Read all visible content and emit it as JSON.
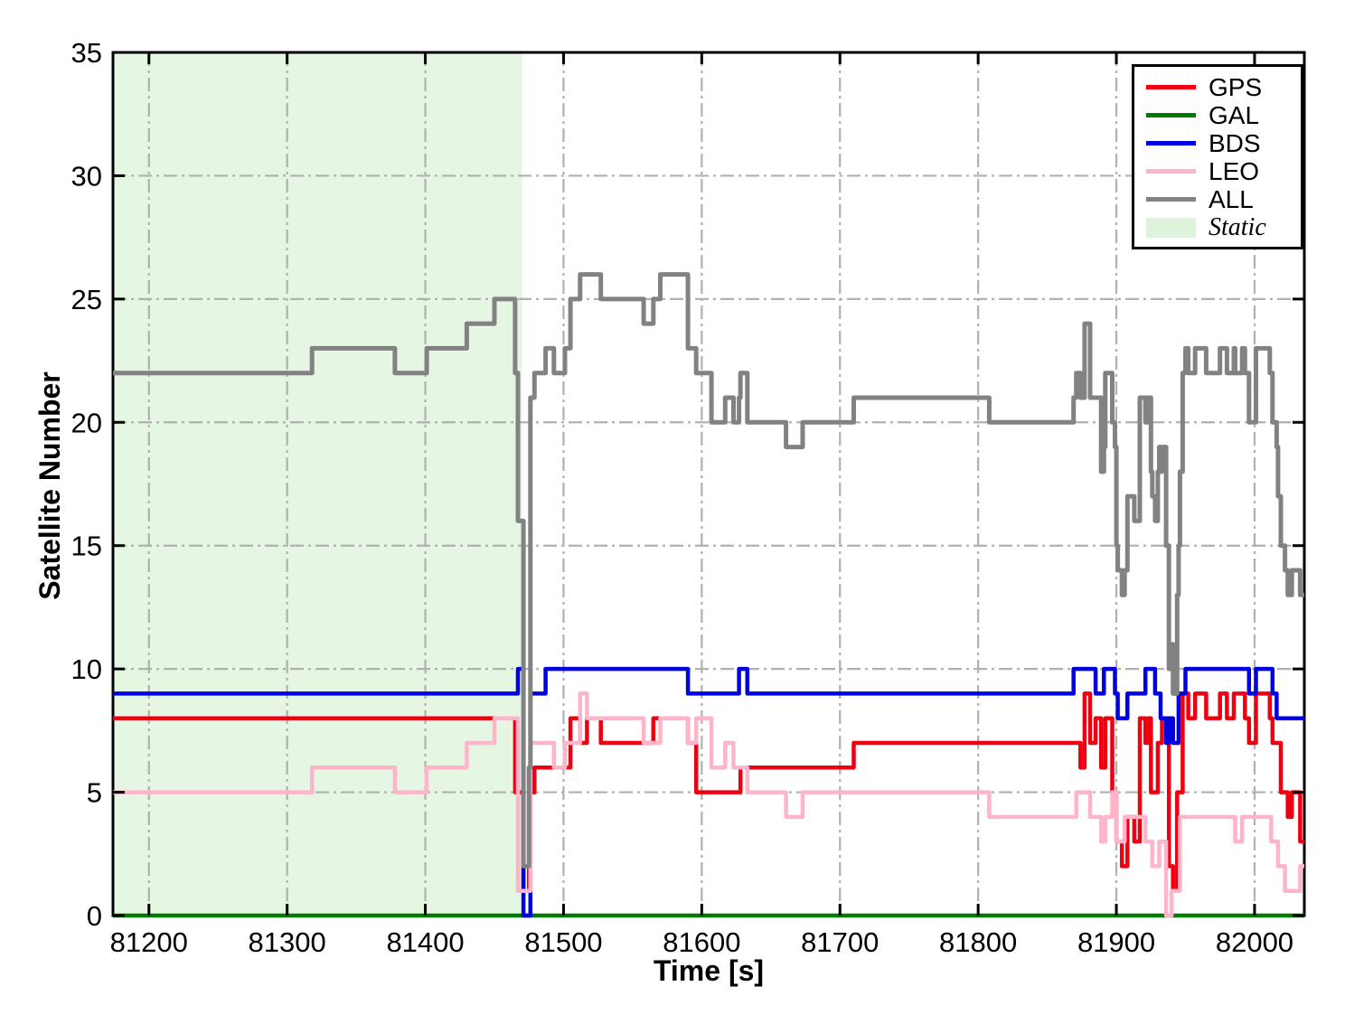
{
  "chart_data": {
    "type": "line",
    "line_style": "step-after",
    "xlabel": "Time [s]",
    "ylabel": "Satellite Number",
    "xlim": [
      81174,
      82036
    ],
    "ylim": [
      0,
      35
    ],
    "xticks": [
      81200,
      81300,
      81400,
      81500,
      81600,
      81700,
      81800,
      81900,
      82000
    ],
    "yticks": [
      0,
      5,
      10,
      15,
      20,
      25,
      30,
      35
    ],
    "grid": true,
    "grid_style": "dash-dot",
    "grid_color": "#b0b0b0",
    "frame_color": "#000000",
    "legend_position": "upper right",
    "static_region": {
      "label": "Static",
      "x_start": 81174,
      "x_end": 81470,
      "color": "#e5f7e3"
    },
    "series": [
      {
        "name": "GPS",
        "color": "#ee0011",
        "width": 4.5,
        "points": [
          [
            81174,
            8
          ],
          [
            81465,
            5
          ],
          [
            81471,
            1
          ],
          [
            81475,
            5
          ],
          [
            81479,
            6
          ],
          [
            81505,
            8
          ],
          [
            81512,
            7
          ],
          [
            81517,
            8
          ],
          [
            81527,
            7
          ],
          [
            81565,
            8
          ],
          [
            81590,
            7
          ],
          [
            81596,
            5
          ],
          [
            81628,
            6
          ],
          [
            81710,
            7
          ],
          [
            81874,
            6
          ],
          [
            81877,
            9
          ],
          [
            81881,
            7
          ],
          [
            81885,
            8
          ],
          [
            81889,
            6
          ],
          [
            81892,
            8
          ],
          [
            81897,
            5
          ],
          [
            81900,
            3
          ],
          [
            81904,
            2
          ],
          [
            81908,
            4
          ],
          [
            81913,
            3
          ],
          [
            81917,
            8
          ],
          [
            81921,
            7
          ],
          [
            81923,
            8
          ],
          [
            81925,
            5
          ],
          [
            81930,
            7
          ],
          [
            81933,
            8
          ],
          [
            81938,
            2
          ],
          [
            81941,
            1
          ],
          [
            81944,
            5
          ],
          [
            81948,
            9
          ],
          [
            81952,
            8
          ],
          [
            81957,
            9
          ],
          [
            81965,
            8
          ],
          [
            81975,
            9
          ],
          [
            81980,
            8
          ],
          [
            81985,
            9
          ],
          [
            81993,
            8
          ],
          [
            81996,
            7
          ],
          [
            82001,
            9
          ],
          [
            82011,
            8
          ],
          [
            82013,
            7
          ],
          [
            82019,
            5
          ],
          [
            82024,
            4
          ],
          [
            82027,
            5
          ],
          [
            82033,
            3
          ]
        ]
      },
      {
        "name": "GAL",
        "color": "#007d00",
        "width": 4.5,
        "points": [
          [
            81174,
            0
          ]
        ]
      },
      {
        "name": "BDS",
        "color": "#0000e0",
        "width": 4.5,
        "points": [
          [
            81174,
            9
          ],
          [
            81467,
            10
          ],
          [
            81471,
            0
          ],
          [
            81476,
            9
          ],
          [
            81487,
            10
          ],
          [
            81590,
            9
          ],
          [
            81627,
            10
          ],
          [
            81633,
            9
          ],
          [
            81869,
            10
          ],
          [
            81885,
            9
          ],
          [
            81891,
            10
          ],
          [
            81899,
            9
          ],
          [
            81901,
            8
          ],
          [
            81908,
            9
          ],
          [
            81921,
            10
          ],
          [
            81928,
            9
          ],
          [
            81932,
            8
          ],
          [
            81936,
            7
          ],
          [
            81938,
            8
          ],
          [
            81941,
            7
          ],
          [
            81945,
            9
          ],
          [
            81950,
            10
          ],
          [
            81996,
            9
          ],
          [
            82001,
            10
          ],
          [
            82013,
            9
          ],
          [
            82016,
            8
          ]
        ]
      },
      {
        "name": "LEO",
        "color": "#ffb5c9",
        "width": 4.5,
        "points": [
          [
            81174,
            5
          ],
          [
            81318,
            6
          ],
          [
            81378,
            5
          ],
          [
            81401,
            6
          ],
          [
            81430,
            7
          ],
          [
            81450,
            8
          ],
          [
            81467,
            1
          ],
          [
            81476,
            7
          ],
          [
            81493,
            6
          ],
          [
            81501,
            7
          ],
          [
            81512,
            9
          ],
          [
            81517,
            8
          ],
          [
            81558,
            7
          ],
          [
            81570,
            8
          ],
          [
            81590,
            7
          ],
          [
            81596,
            8
          ],
          [
            81607,
            6
          ],
          [
            81617,
            7
          ],
          [
            81623,
            6
          ],
          [
            81633,
            5
          ],
          [
            81661,
            4
          ],
          [
            81673,
            5
          ],
          [
            81808,
            4
          ],
          [
            81871,
            5
          ],
          [
            81881,
            4
          ],
          [
            81889,
            3
          ],
          [
            81892,
            4
          ],
          [
            81897,
            5
          ],
          [
            81900,
            3
          ],
          [
            81906,
            4
          ],
          [
            81921,
            3
          ],
          [
            81926,
            2
          ],
          [
            81931,
            3
          ],
          [
            81936,
            0
          ],
          [
            81940,
            1
          ],
          [
            81946,
            4
          ],
          [
            81986,
            3
          ],
          [
            81991,
            4
          ],
          [
            82012,
            3
          ],
          [
            82017,
            2
          ],
          [
            82022,
            1
          ],
          [
            82033,
            2
          ]
        ]
      },
      {
        "name": "ALL",
        "color": "#828282",
        "width": 5,
        "points": [
          [
            81174,
            22
          ],
          [
            81318,
            23
          ],
          [
            81378,
            22
          ],
          [
            81401,
            23
          ],
          [
            81430,
            24
          ],
          [
            81450,
            25
          ],
          [
            81465,
            22
          ],
          [
            81467,
            16
          ],
          [
            81471,
            2
          ],
          [
            81475,
            6
          ],
          [
            81476,
            21
          ],
          [
            81479,
            22
          ],
          [
            81487,
            23
          ],
          [
            81493,
            22
          ],
          [
            81501,
            23
          ],
          [
            81505,
            25
          ],
          [
            81512,
            26
          ],
          [
            81527,
            25
          ],
          [
            81558,
            24
          ],
          [
            81565,
            25
          ],
          [
            81570,
            26
          ],
          [
            81590,
            23
          ],
          [
            81596,
            22
          ],
          [
            81607,
            20
          ],
          [
            81617,
            21
          ],
          [
            81623,
            20
          ],
          [
            81627,
            21
          ],
          [
            81628,
            22
          ],
          [
            81633,
            20
          ],
          [
            81661,
            19
          ],
          [
            81673,
            20
          ],
          [
            81710,
            21
          ],
          [
            81808,
            20
          ],
          [
            81869,
            21
          ],
          [
            81871,
            22
          ],
          [
            81874,
            21
          ],
          [
            81877,
            24
          ],
          [
            81881,
            21
          ],
          [
            81889,
            18
          ],
          [
            81891,
            19
          ],
          [
            81892,
            22
          ],
          [
            81897,
            20
          ],
          [
            81899,
            19
          ],
          [
            81900,
            15
          ],
          [
            81901,
            14
          ],
          [
            81904,
            13
          ],
          [
            81906,
            14
          ],
          [
            81908,
            17
          ],
          [
            81913,
            16
          ],
          [
            81917,
            21
          ],
          [
            81921,
            20
          ],
          [
            81923,
            21
          ],
          [
            81925,
            18
          ],
          [
            81926,
            17
          ],
          [
            81928,
            16
          ],
          [
            81930,
            18
          ],
          [
            81931,
            19
          ],
          [
            81932,
            18
          ],
          [
            81933,
            19
          ],
          [
            81936,
            15
          ],
          [
            81938,
            10
          ],
          [
            81940,
            11
          ],
          [
            81941,
            9
          ],
          [
            81944,
            13
          ],
          [
            81945,
            15
          ],
          [
            81946,
            18
          ],
          [
            81948,
            22
          ],
          [
            81950,
            23
          ],
          [
            81952,
            22
          ],
          [
            81957,
            23
          ],
          [
            81965,
            22
          ],
          [
            81975,
            23
          ],
          [
            81980,
            22
          ],
          [
            81985,
            23
          ],
          [
            81986,
            22
          ],
          [
            81991,
            23
          ],
          [
            81993,
            22
          ],
          [
            81996,
            20
          ],
          [
            82001,
            23
          ],
          [
            82011,
            22
          ],
          [
            82013,
            20
          ],
          [
            82016,
            19
          ],
          [
            82017,
            17
          ],
          [
            82019,
            15
          ],
          [
            82022,
            14
          ],
          [
            82024,
            13
          ],
          [
            82027,
            14
          ],
          [
            82033,
            13
          ]
        ]
      }
    ]
  },
  "legend": {
    "entries": [
      {
        "label": "GPS",
        "color": "#ee0011",
        "type": "line"
      },
      {
        "label": "GAL",
        "color": "#007d00",
        "type": "line"
      },
      {
        "label": "BDS",
        "color": "#0000e0",
        "type": "line"
      },
      {
        "label": "LEO",
        "color": "#ffb5c9",
        "type": "line"
      },
      {
        "label": "ALL",
        "color": "#828282",
        "type": "line"
      },
      {
        "label": "Static",
        "color": "#ddf3dc",
        "type": "patch",
        "italic": true
      }
    ]
  }
}
